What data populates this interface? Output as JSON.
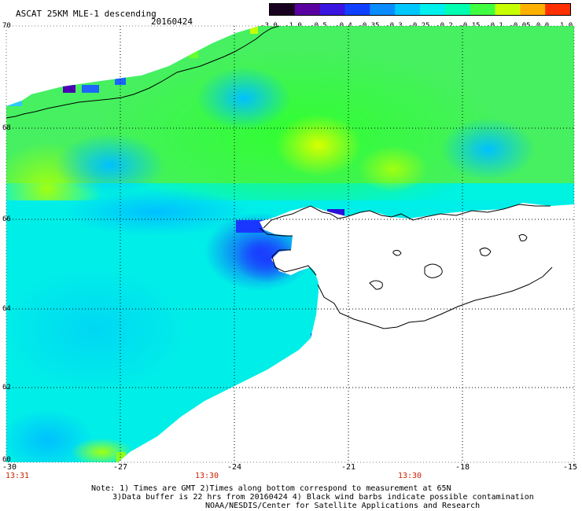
{
  "header": {
    "title": "ASCAT 25KM MLE-1 descending",
    "date": "20160424"
  },
  "colorbar": {
    "ticks": [
      "-3.0",
      "-1.0",
      "-0.5",
      "-0.4",
      "-0.35",
      "-0.3",
      "-0.25",
      "-0.2",
      "-0.15",
      "-0.1",
      "-0.05",
      "0.0",
      "1.0"
    ],
    "colors": [
      "#1a0020",
      "#5a00a0",
      "#3a14e0",
      "#1040ff",
      "#0a8cff",
      "#00c8ff",
      "#00f0ee",
      "#00ffb0",
      "#40ff40",
      "#c8ff00",
      "#ffb000",
      "#ff3000"
    ]
  },
  "map": {
    "lat_labels": [
      "70",
      "68",
      "66",
      "64",
      "62",
      "60"
    ],
    "lon_labels": [
      "-30",
      "-27",
      "-24",
      "-21",
      "-18",
      "-15"
    ],
    "time_labels": [
      "13:31",
      "13:30",
      "13:30"
    ],
    "time_color": "#cc2200",
    "extent": {
      "lon_min": -30,
      "lon_max": -15,
      "lat_min": 60,
      "lat_max": 70
    }
  },
  "notes": {
    "line1": "Note: 1) Times are GMT 2)Times along bottom correspond to measurement at 65N",
    "line2": "3)Data buffer is 22 hrs from 20160424 4) Black wind barbs indicate possible contamination",
    "line3": "NOAA/NESDIS/Center for Satellite Applications and Research"
  }
}
